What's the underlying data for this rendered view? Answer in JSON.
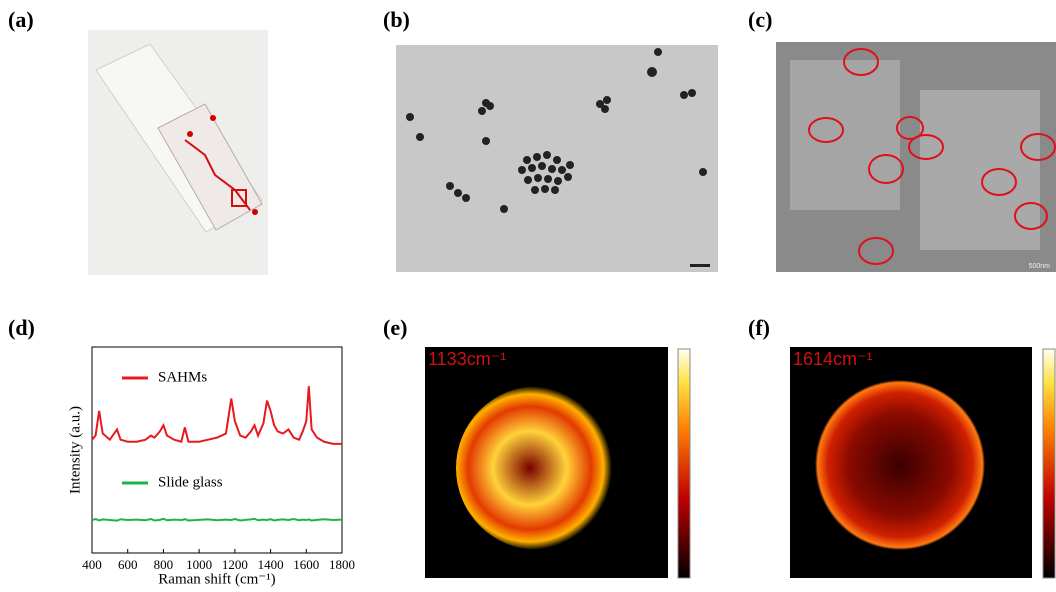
{
  "panels": [
    {
      "label": "(a)"
    },
    {
      "label": "(b)"
    },
    {
      "label": "(c)",
      "scale_text": "500nm"
    },
    {
      "label": "(d)"
    },
    {
      "label": "(e)",
      "map_label": "1133cm⁻¹"
    },
    {
      "label": "(f)",
      "map_label": "1614cm⁻¹"
    }
  ],
  "chart_data": {
    "type": "line",
    "xlabel": "Raman shift (cm⁻¹)",
    "ylabel": "Intensity (a.u.)",
    "x": [
      400,
      420,
      440,
      460,
      500,
      540,
      560,
      600,
      650,
      700,
      730,
      750,
      780,
      800,
      820,
      860,
      900,
      920,
      940,
      1000,
      1050,
      1100,
      1150,
      1180,
      1200,
      1230,
      1260,
      1290,
      1310,
      1330,
      1360,
      1380,
      1400,
      1420,
      1440,
      1470,
      1500,
      1530,
      1560,
      1580,
      1600,
      1614,
      1630,
      1660,
      1700,
      1750,
      1800
    ],
    "xlim": [
      400,
      1800
    ],
    "xticks": [
      400,
      600,
      800,
      1000,
      1200,
      1400,
      1600,
      1800
    ],
    "ylim": [
      0,
      100
    ],
    "series": [
      {
        "name": "SAHMs",
        "color": "#e8191d",
        "values": [
          55,
          57,
          69,
          58,
          55,
          60,
          55,
          54,
          54,
          55,
          57,
          56,
          59,
          62,
          57,
          55,
          54,
          61,
          54,
          54,
          55,
          56,
          58,
          75,
          64,
          57,
          56,
          59,
          62,
          57,
          63,
          74,
          69,
          62,
          59,
          58,
          60,
          56,
          55,
          59,
          64,
          81,
          60,
          56,
          54,
          53,
          53
        ]
      },
      {
        "name": "Slide glass",
        "color": "#1db34a",
        "values": [
          16,
          16.5,
          15.8,
          16.3,
          16,
          15.7,
          16.4,
          16,
          16.2,
          15.9,
          16.5,
          15.8,
          16.1,
          16.6,
          15.9,
          16.2,
          16,
          16.4,
          15.8,
          16.1,
          16.3,
          15.9,
          16.2,
          16,
          16.5,
          15.8,
          16.1,
          16.3,
          16.6,
          15.9,
          16.2,
          16,
          16.4,
          15.8,
          16.1,
          16.3,
          16,
          16.5,
          15.9,
          16.2,
          16,
          16.3,
          15.8,
          16.1,
          16.4,
          16,
          16.2
        ]
      }
    ]
  }
}
